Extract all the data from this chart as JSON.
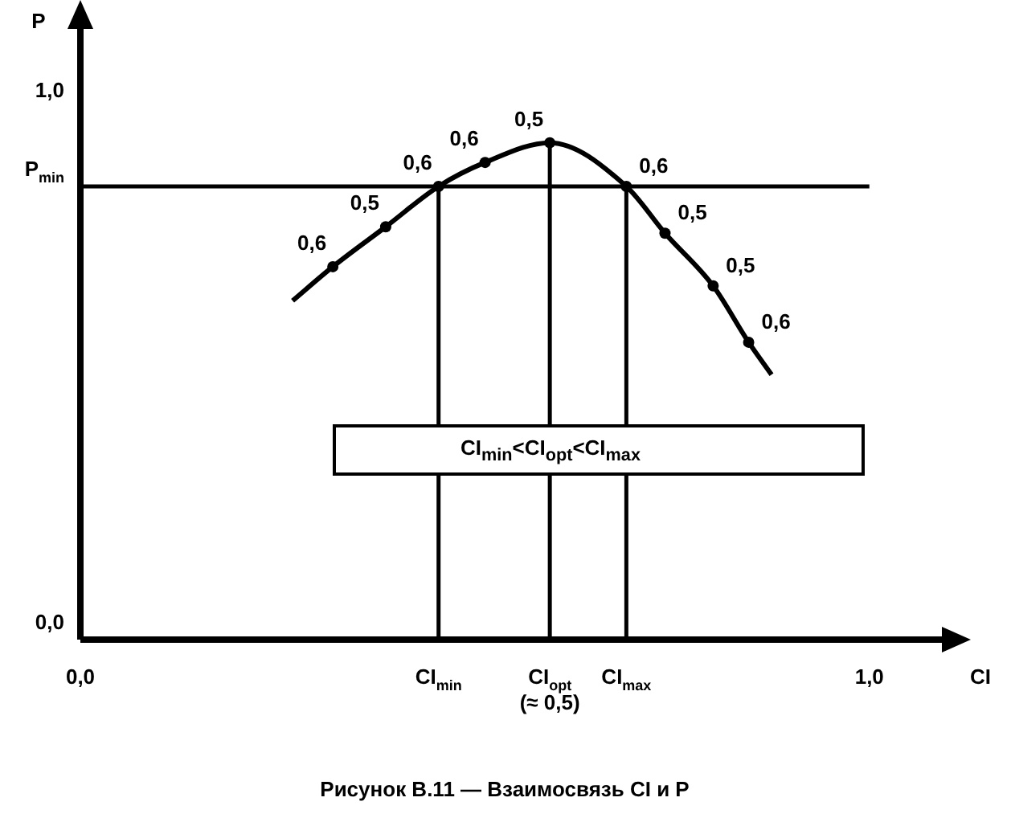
{
  "chart_data": {
    "type": "line",
    "title": "Рисунок B.11 — Взаимосвязь CI и P",
    "xlabel": "CI",
    "ylabel": "P",
    "x": [
      0.269,
      0.32,
      0.387,
      0.454,
      0.513,
      0.595,
      0.692,
      0.741,
      0.802,
      0.847,
      0.876
    ],
    "values": [
      0.637,
      0.701,
      0.776,
      0.852,
      0.897,
      0.934,
      0.852,
      0.764,
      0.665,
      0.559,
      0.498
    ],
    "color": "#000000",
    "marker": "circle",
    "line_style": "solid",
    "grid": false,
    "xlim": [
      0,
      1.096
    ],
    "ylim": [
      0,
      1.154
    ],
    "xticks": [
      {
        "value": 0,
        "label": "0,0"
      },
      {
        "value": 0.454,
        "label": "CI$_{min}$"
      },
      {
        "value": 0.595,
        "label": "CI$_{opt}$"
      },
      {
        "value": 0.692,
        "label": "CI$_{max}$"
      },
      {
        "value": 1,
        "label": "1,0"
      }
    ],
    "yticks": [
      {
        "value": 0,
        "label": "0,0"
      },
      {
        "value": 0.852,
        "label": "P$_{min}$"
      },
      {
        "value": 1,
        "label": "1,0"
      }
    ],
    "ref_lines": [
      {
        "axis": "y",
        "value": 0.852
      },
      {
        "axis": "x",
        "value": 0.454
      },
      {
        "axis": "x",
        "value": 0.595
      },
      {
        "axis": "x",
        "value": 0.692
      }
    ],
    "annotations": [
      "CI$_{min}$<CI$_{opt}$<CI$_{max}$",
      {
        "text": "(≈ 0,5)",
        "x": 0.595,
        "y": 0
      },
      {
        "text": "0,6",
        "x": 0.32,
        "y": 0.701
      },
      {
        "text": "0,5",
        "x": 0.387,
        "y": 0.776
      },
      {
        "text": "0,6",
        "x": 0.454,
        "y": 0.852
      },
      {
        "text": "0,6",
        "x": 0.513,
        "y": 0.897
      },
      {
        "text": "0,5",
        "x": 0.595,
        "y": 0.934
      },
      {
        "text": "0,6",
        "x": 0.692,
        "y": 0.852
      },
      {
        "text": "0,5",
        "x": 0.741,
        "y": 0.764
      },
      {
        "text": "0,5",
        "x": 0.802,
        "y": 0.665
      },
      {
        "text": "0,6",
        "x": 0.847,
        "y": 0.559
      }
    ]
  }
}
